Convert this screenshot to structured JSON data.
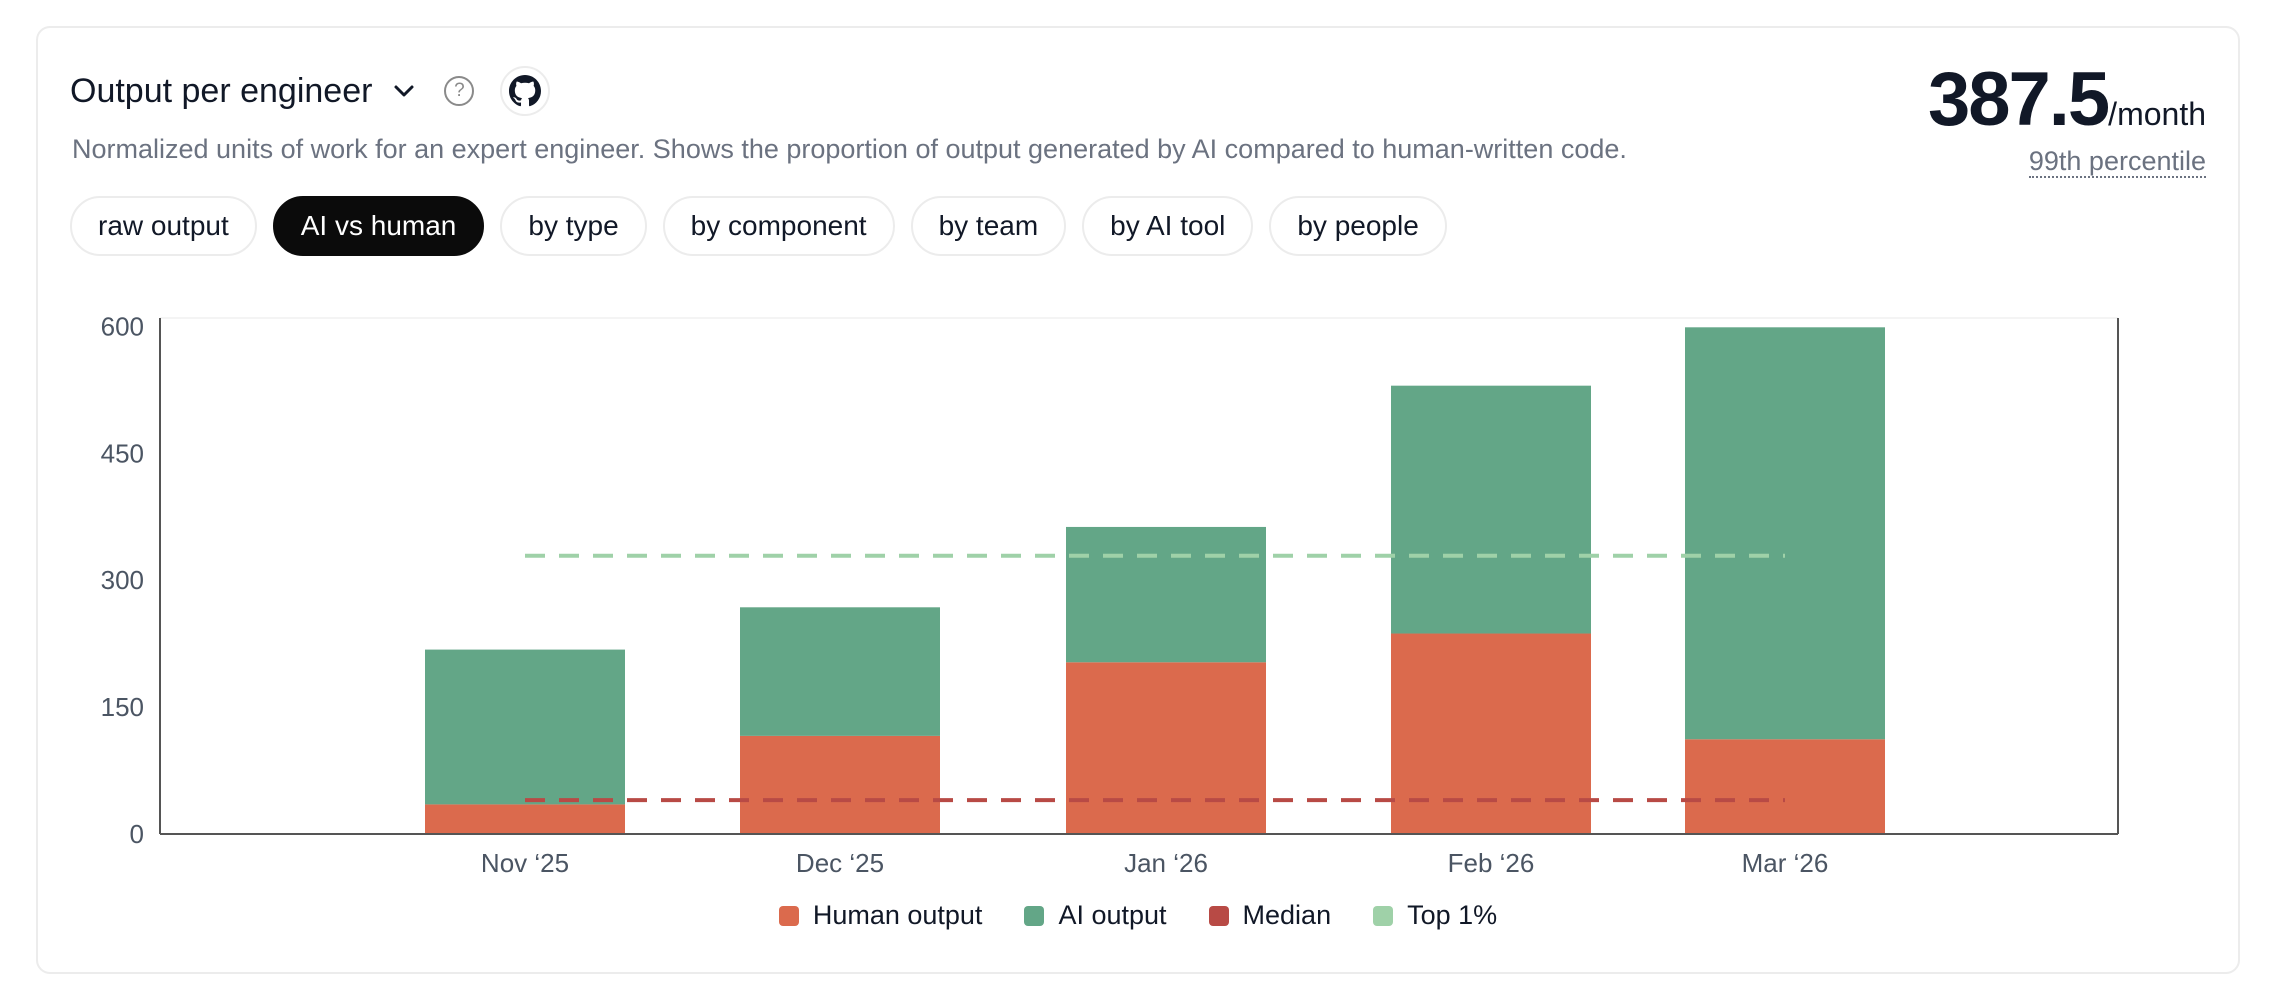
{
  "header": {
    "title": "Output per engineer",
    "description": "Normalized units of work for an expert engineer. Shows the proportion of output generated by AI compared to human-written code.",
    "help_glyph": "?"
  },
  "kpi": {
    "value": "387.5",
    "unit": "/month",
    "subtitle": "99th percentile"
  },
  "tabs": [
    {
      "label": "raw output",
      "active": false
    },
    {
      "label": "AI vs human",
      "active": true
    },
    {
      "label": "by type",
      "active": false
    },
    {
      "label": "by component",
      "active": false
    },
    {
      "label": "by team",
      "active": false
    },
    {
      "label": "by AI tool",
      "active": false
    },
    {
      "label": "by people",
      "active": false
    }
  ],
  "colors": {
    "human": "#db6a4d",
    "ai": "#63a687",
    "median": "#b84a45",
    "top1": "#9fd1a8",
    "axis": "#555555"
  },
  "chart_data": {
    "type": "bar",
    "stacked": true,
    "categories": [
      "Nov ‘25",
      "Dec ‘25",
      "Jan ‘26",
      "Feb ‘26",
      "Mar ‘26"
    ],
    "series": [
      {
        "name": "Human output",
        "values": [
          35,
          116,
          203,
          237,
          112
        ]
      },
      {
        "name": "AI output",
        "values": [
          183,
          152,
          160,
          293,
          487
        ]
      }
    ],
    "reference_lines": [
      {
        "name": "Median",
        "value": 40
      },
      {
        "name": "Top 1%",
        "value": 329
      }
    ],
    "ylim": [
      0,
      610
    ],
    "yticks": [
      0,
      150,
      300,
      450,
      600
    ],
    "xlabel": "",
    "ylabel": "",
    "legend": "bottom-center"
  }
}
